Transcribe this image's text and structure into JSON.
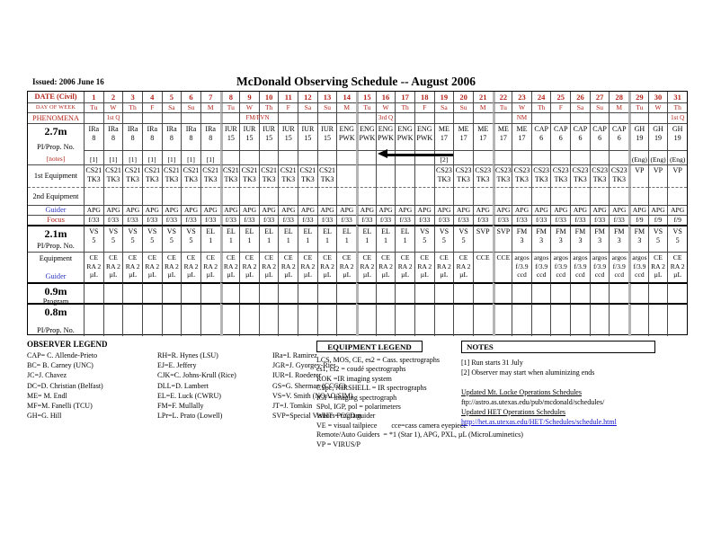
{
  "header": {
    "issued": "Issued: 2006 June 16",
    "title": "McDonald Observing Schedule -- August 2006"
  },
  "colors": {
    "header_red": "#b3241a",
    "guider_blue": "#2b35c4",
    "link_blue": "#1010cc"
  },
  "schedule": {
    "bands": [
      {
        "id": "date",
        "label": {
          "lines": [
            [
              "DATE (Civil)",
              "md red b"
            ]
          ]
        },
        "cells": [
          "1",
          "2",
          "3",
          "4",
          "5",
          "6",
          "7",
          "8",
          "9",
          "10",
          "11",
          "12",
          "13",
          "14",
          "15",
          "16",
          "17",
          "18",
          "19",
          "20",
          "21",
          "22",
          "23",
          "24",
          "25",
          "26",
          "27",
          "28",
          "29",
          "30",
          "31"
        ]
      },
      {
        "id": "dow",
        "label": {
          "lines": [
            [
              "DAY OF WEEK",
              "dw red"
            ]
          ]
        },
        "cells": [
          "Tu",
          "W",
          "Th",
          "F",
          "Sa",
          "Su",
          "M",
          "Tu",
          "W",
          "Th",
          "F",
          "Sa",
          "Su",
          "M",
          "Tu",
          "W",
          "Th",
          "F",
          "Sa",
          "Su",
          "M",
          "Tu",
          "W",
          "Th",
          "F",
          "Sa",
          "Su",
          "M",
          "Tu",
          "W",
          "Th"
        ]
      },
      {
        "id": "phen",
        "label": {
          "lines": [
            [
              "PHENOMENA",
              "md red"
            ]
          ]
        },
        "cells": [
          "",
          "1st Q",
          "",
          "",
          "",
          "",
          "",
          "",
          {
            "t": "FM/PVN",
            "s": "sr"
          },
          "",
          "",
          "",
          "",
          "",
          "",
          "3rd Q",
          "",
          "",
          "",
          "",
          "",
          "",
          "NM",
          "",
          "",
          "",
          "",
          "",
          "",
          "",
          "1st Q"
        ]
      },
      {
        "id": "m27_pi",
        "label": {
          "span": 2,
          "lines": [
            [
              "2.7m",
              "tn"
            ],
            [
              "PI/Prop. No.",
              "md"
            ],
            [
              "[notes]",
              "sm red"
            ]
          ]
        },
        "cells": [
          "IRa\n8",
          "IRa\n8",
          "IRa\n8",
          "IRa\n8",
          "IRa\n8",
          "IRa\n8",
          "IRa\n8",
          "IUR\n15",
          "IUR\n15",
          "IUR\n15",
          "IUR\n15",
          "IUR\n15",
          "IUR\n15",
          "ENG\nPWK",
          "ENG\nPWK",
          "ENG\nPWK",
          "ENG\nPWK",
          "ENG\nPWK",
          "ME\n17",
          "ME\n17",
          "ME\n17",
          "ME\n17",
          "ME\n17",
          "CAP\n6",
          "CAP\n6",
          "CAP\n6",
          "CAP\n6",
          "CAP\n6",
          "GH\n19",
          "GH\n19",
          "GH\n19"
        ]
      },
      {
        "id": "m27_notes",
        "label": null,
        "cells": [
          "[1]",
          "[1]",
          "[1]",
          "[1]",
          "[1]",
          "[1]",
          "[1]",
          "",
          "",
          "",
          "",
          "",
          "",
          "",
          "",
          "",
          "",
          "",
          "[2]",
          "",
          "",
          "",
          "",
          "",
          "",
          "",
          "",
          "",
          "(Eng)",
          "(Eng)",
          "(Eng)"
        ]
      },
      {
        "id": "equip1",
        "label": {
          "lines": [
            [
              "1st Equipment",
              "md"
            ]
          ]
        },
        "cells": [
          "CS21\nTK3",
          "CS21\nTK3",
          "CS21\nTK3",
          "CS21\nTK3",
          "CS21\nTK3",
          "CS21\nTK3",
          "CS21\nTK3",
          "CS21\nTK3",
          "CS21\nTK3",
          "CS21\nTK3",
          "CS21\nTK3",
          "CS21\nTK3",
          "CS21\nTK3",
          "",
          "",
          "",
          "",
          "",
          "CS23\nTK3",
          "CS23\nTK3",
          "CS23\nTK3",
          "CS23\nTK3",
          "CS23\nTK3",
          "CS23\nTK3",
          "CS23\nTK3",
          "CS23\nTK3",
          "CS23\nTK3",
          "CS23\nTK3",
          "VP",
          "VP",
          "VP"
        ]
      },
      {
        "id": "equip2",
        "label": {
          "lines": [
            [
              "2nd Equipment",
              "md"
            ]
          ]
        },
        "cells": [
          "",
          "",
          "",
          "",
          "",
          "",
          "",
          "",
          "",
          "",
          "",
          "",
          "",
          "",
          "",
          "",
          "",
          "",
          "",
          "",
          "",
          "",
          "",
          "",
          "",
          "",
          "",
          "",
          "",
          "",
          ""
        ]
      },
      {
        "id": "guider27",
        "label": {
          "lines": [
            [
              "Guider",
              "md blue"
            ]
          ]
        },
        "cells": [
          "APG",
          "APG",
          "APG",
          "APG",
          "APG",
          "APG",
          "APG",
          "APG",
          "APG",
          "APG",
          "APG",
          "APG",
          "APG",
          "APG",
          "APG",
          "APG",
          "APG",
          "APG",
          "APG",
          "APG",
          "APG",
          "APG",
          "APG",
          "APG",
          "APG",
          "APG",
          "APG",
          "APG",
          "APG",
          "APG",
          "APG"
        ]
      },
      {
        "id": "focus27",
        "label": {
          "lines": [
            [
              "Focus",
              "md red"
            ]
          ]
        },
        "cells": [
          "f/33",
          "f/33",
          "f/33",
          "f/33",
          "f/33",
          "f/33",
          "f/33",
          "f/33",
          "f/33",
          "f/33",
          "f/33",
          "f/33",
          "f/33",
          "f/33",
          "f/33",
          "f/33",
          "f/33",
          "f/33",
          "f/33",
          "f/33",
          "f/33",
          "f/33",
          "f/33",
          "f/33",
          "f/33",
          "f/33",
          "f/33",
          "f/33",
          "f/9",
          "f/9",
          "f/9"
        ]
      },
      {
        "id": "m21_pi",
        "label": {
          "lines": [
            [
              "2.1m",
              "tn"
            ],
            [
              "PI/Prop. No.",
              "md"
            ]
          ]
        },
        "cells": [
          "VS\n5",
          "VS\n5",
          "VS\n5",
          "VS\n5",
          "VS\n5",
          "VS\n5",
          "EL\n1",
          "EL\n1",
          "EL\n1",
          "EL\n1",
          "EL\n1",
          "EL\n1",
          "EL\n1",
          "EL\n1",
          "EL\n1",
          "EL\n1",
          "EL\n1",
          "VS\n5",
          "VS\n5",
          "VS\n5",
          "SVP",
          "SVP",
          "FM\n3",
          "FM\n3",
          "FM\n3",
          "FM\n3",
          "FM\n3",
          "FM\n3",
          "FM\n3",
          "VS\n5",
          "VS\n5"
        ]
      },
      {
        "id": "m21_eq",
        "label": {
          "lines": [
            [
              "Equipment",
              "md"
            ],
            [
              "Guider",
              "md blue"
            ]
          ]
        },
        "cells": [
          "CE\nRA 2\nµL",
          "CE\nRA 2\nµL",
          "CE\nRA 2\nµL",
          "CE\nRA 2\nµL",
          "CE\nRA 2\nµL",
          "CE\nRA 2\nµL",
          "CE\nRA 2\nµL",
          "CE\nRA 2\nµL",
          "CE\nRA 2\nµL",
          "CE\nRA 2\nµL",
          "CE\nRA 2\nµL",
          "CE\nRA 2\nµL",
          "CE\nRA 2\nµL",
          "CE\nRA 2\nµL",
          "CE\nRA 2\nµL",
          "CE\nRA 2\nµL",
          "CE\nRA 2\nµL",
          "CE\nRA 2\nµL",
          "CE\nRA 2\nµL",
          "CE\nRA 2\nµL",
          "CCE",
          "CCE",
          "argos\nf/3.9\nccd",
          "argos\nf/3.9\nccd",
          "argos\nf/3.9\nccd",
          "argos\nf/3.9\nccd",
          "argos\nf/3.9\nccd",
          "argos\nf/3.9\nccd",
          "argos\nf/3.9\nccd",
          "CE\nRA 2\nµL",
          "CE\nRA 2\nµL"
        ]
      },
      {
        "id": "m09",
        "label": {
          "lines": [
            [
              "0.9m",
              "tn"
            ],
            [
              "Program",
              "md"
            ]
          ]
        },
        "cells": [
          "",
          "",
          "",
          "",
          "",
          "",
          "",
          "",
          "",
          "",
          "",
          "",
          "",
          "",
          "",
          "",
          "",
          "",
          "",
          "",
          "",
          "",
          "",
          "",
          "",
          "",
          "",
          "",
          "",
          "",
          ""
        ]
      },
      {
        "id": "m08",
        "label": {
          "lines": [
            [
              "0.8m",
              "tn"
            ],
            [
              "PI/Prop. No.",
              "md"
            ]
          ]
        },
        "cells": [
          "",
          "",
          "",
          "",
          "",
          "",
          "",
          "",
          "",
          "",
          "",
          "",
          "",
          "",
          "",
          "",
          "",
          "",
          "",
          "",
          "",
          "",
          "",
          "",
          "",
          "",
          "",
          "",
          "",
          "",
          ""
        ]
      }
    ]
  },
  "legends": {
    "observer": {
      "title": "OBSERVER LEGEND",
      "columns": [
        [
          "CAP= C. Allende-Prieto",
          "BC= B. Carney (UNC)",
          "JC=J. Chavez",
          "DC=D. Christian (Belfast)",
          "ME= M. Endl",
          "MF=M. Fanelli (TCU)",
          "GH=G. Hill"
        ],
        [
          "RH=R. Hynes (LSU)",
          "EJ=E. Jeffery",
          "CJK=C. Johns-Krull (Rice)",
          "DLL=D. Lambert",
          "EL=E. Luck (CWRU)",
          "FM=F. Mullally",
          "LPr=L. Prato (Lowell)"
        ],
        [
          "IRa=I. Ramirez",
          "JGR=J. Gyorgey-Ries",
          "IUR=I. Roederer",
          "GS=G. Sherman (CCCC)",
          "VS=V. Smith (NOAO/SIM)",
          "JT=J. Tomkin",
          "SVP=Special Visitors Program"
        ]
      ]
    },
    "equipment": {
      "title": "EQUIPMENT LEGEND",
      "lines": [
        "LCS, MOS, CE, es2 = Cass. spectrographs",
        "cs1, cs2 = coudé spectrographs",
        "ROK =IR imaging system",
        "CSpc, NIRSHELL = IR spectrographs",
        "IGI = imaging spectrograph",
        "SPol, IGP, pol = polarimeters",
        "WHT = CCD guider",
        "VE = visual tailpiece        cce=cass camera eyepiece",
        "Remote/Auto Guiders  = *1 (Star 1), APG, PXL, µL (MicroLuminetics)",
        "VP = VIRUS/P"
      ]
    },
    "notes": {
      "title": "NOTES",
      "lines": [
        {
          "t": "[1] Run starts 31 July"
        },
        {
          "t": "[2] Observer may start when aluminizing ends"
        },
        {
          "t": ""
        },
        {
          "t": "Updated Mt. Locke Operations Schedules",
          "u": 1
        },
        {
          "t": "ftp://astro.as.utexas.edu/pub/mcdonald/schedules/"
        },
        {
          "t": "Updated HET Operations Schedules",
          "u": 1
        },
        {
          "t": "http://het.as.utexas.edu/HET/Schedules/schedule.html",
          "u": 1,
          "link": 1
        }
      ]
    }
  }
}
